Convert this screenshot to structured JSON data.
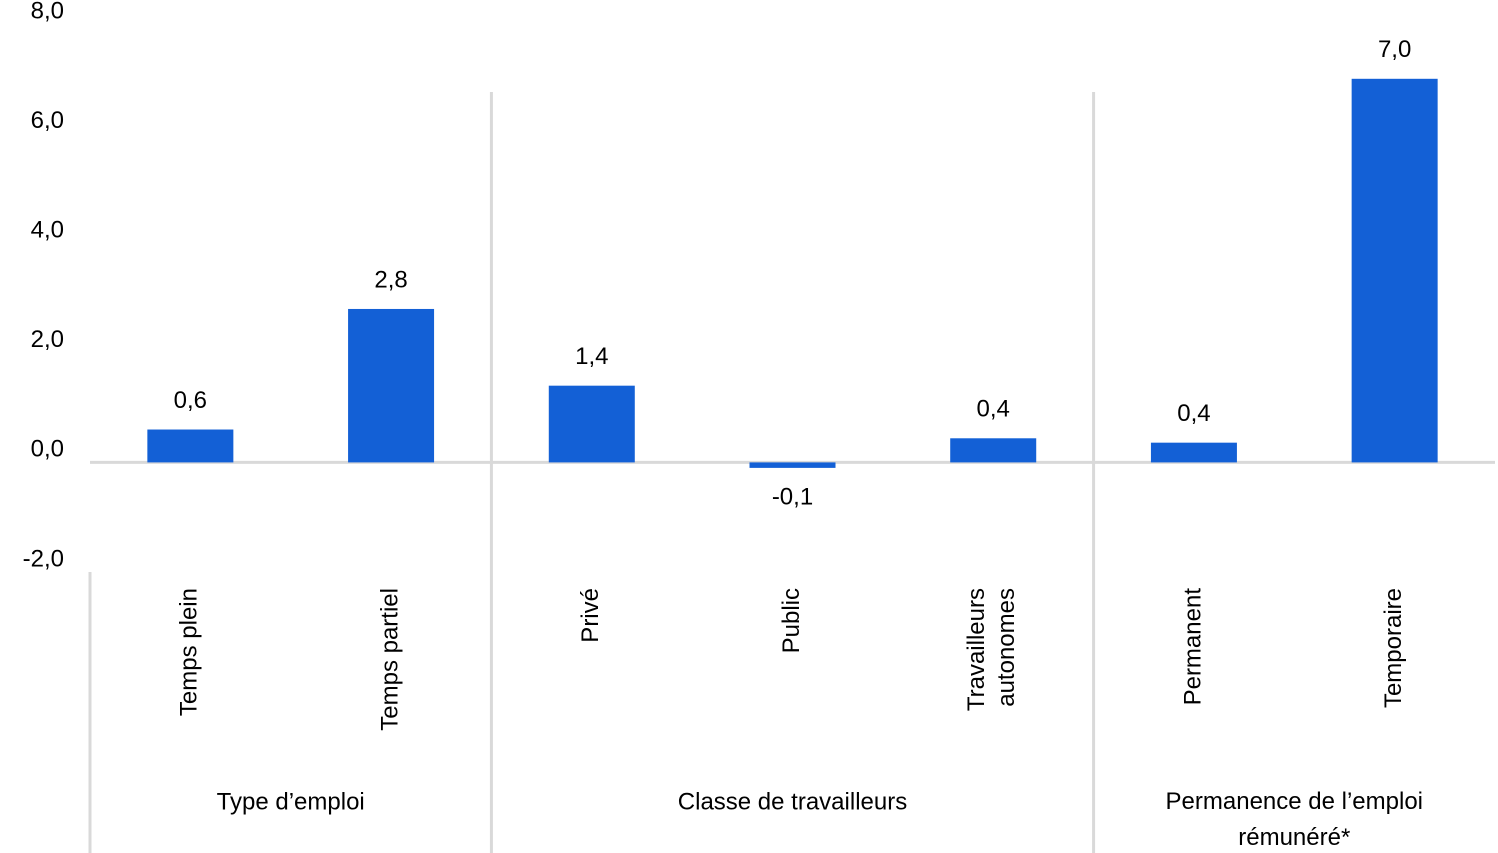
{
  "chart_data": {
    "type": "bar",
    "categories": [
      "Temps plein",
      "Temps partiel",
      "Privé",
      "Public",
      "Travailleurs autonomes",
      "Permanent",
      "Temporaire"
    ],
    "groups": [
      {
        "name": "Type d’emploi",
        "categories": [
          "Temps plein",
          "Temps partiel"
        ]
      },
      {
        "name": "Classe de travailleurs",
        "categories": [
          "Privé",
          "Public",
          "Travailleurs autonomes"
        ]
      },
      {
        "name": "Permanence de l’emploi rémunéré*",
        "categories": [
          "Permanent",
          "Temporaire"
        ]
      }
    ],
    "values": [
      0.6,
      2.8,
      1.4,
      -0.1,
      0.44,
      0.36,
      7.0
    ],
    "value_labels": [
      "0,6",
      "2,8",
      "1,4",
      "-0,1",
      "0,4",
      "0,4",
      "7,0"
    ],
    "color": "#1360d6",
    "ylim": [
      -2,
      8
    ],
    "yticks": [
      {
        "value": -2,
        "label": "-2,0"
      },
      {
        "value": 0,
        "label": "0,0"
      },
      {
        "value": 2,
        "label": "2,0"
      },
      {
        "value": 4,
        "label": "4,0"
      },
      {
        "value": 6,
        "label": "6,0"
      },
      {
        "value": 8,
        "label": "8,0"
      }
    ],
    "grid": false
  }
}
